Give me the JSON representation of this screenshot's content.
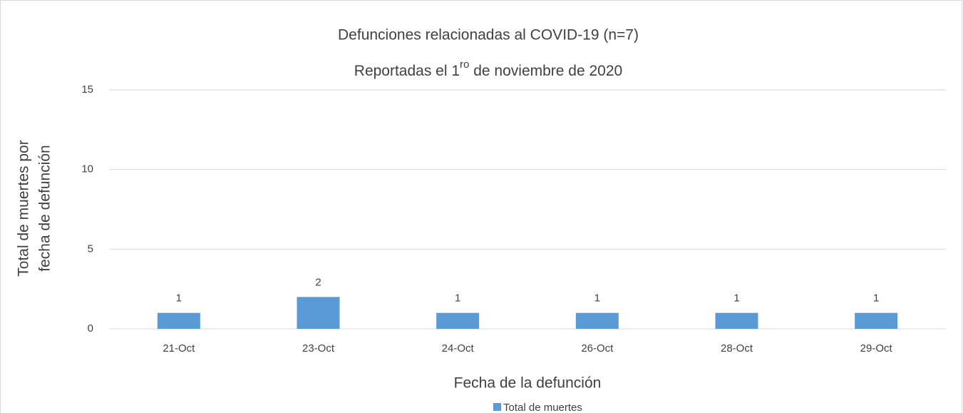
{
  "chart_data": {
    "type": "bar",
    "title": "Defunciones relacionadas al COVID-19 (n=7)",
    "subtitle": {
      "text": "Reportadas el 1",
      "superscript": "ro",
      "rest": " de noviembre de 2020"
    },
    "xlabel": "Fecha de la defunción",
    "ylabel": [
      "Total de muertes  por",
      "fecha de defunción"
    ],
    "categories": [
      "21-Oct",
      "23-Oct",
      "24-Oct",
      "26-Oct",
      "28-Oct",
      "29-Oct"
    ],
    "series": [
      {
        "name": "Total de muertes",
        "color": "#5b9bd5",
        "values": [
          1,
          2,
          1,
          1,
          1,
          1
        ]
      }
    ],
    "ylim": [
      0,
      15
    ],
    "yticks": [
      0,
      5,
      10,
      15
    ],
    "grid": true,
    "legend": "bottom",
    "data_labels": true
  }
}
